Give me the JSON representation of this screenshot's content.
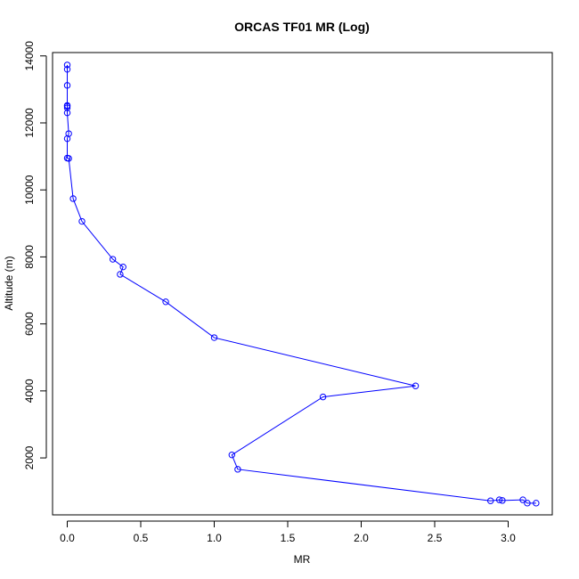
{
  "chart_data": {
    "type": "line",
    "title": "ORCAS TF01 MR (Log)",
    "xlabel": "MR",
    "ylabel": "Altitude (m)",
    "xlim": [
      -0.1,
      3.3
    ],
    "ylim": [
      300,
      14100
    ],
    "xticks": [
      0.0,
      0.5,
      1.0,
      1.5,
      2.0,
      2.5,
      3.0
    ],
    "xtick_labels": [
      "0.0",
      "0.5",
      "1.0",
      "1.5",
      "2.0",
      "2.5",
      "3.0"
    ],
    "yticks": [
      2000,
      4000,
      6000,
      8000,
      10000,
      12000,
      14000
    ],
    "ytick_labels": [
      "2000",
      "4000",
      "6000",
      "8000",
      "10000",
      "12000",
      "14000"
    ],
    "grid": false,
    "line_color": "#0000ff",
    "marker": "open-circle",
    "series": [
      {
        "x": [
          3.19,
          3.13,
          3.1,
          2.96,
          2.94,
          2.88,
          1.16,
          1.12,
          1.74,
          2.37,
          1.0,
          0.67,
          0.36,
          0.38,
          0.31,
          0.1,
          0.04,
          0.01,
          0.0,
          0.0,
          0.01,
          0.0,
          0.0,
          0.0,
          0.0,
          0.0,
          0.0,
          0.0
        ],
        "y": [
          650,
          650,
          750,
          730,
          750,
          720,
          1660,
          2090,
          3820,
          4150,
          5590,
          6660,
          7480,
          7700,
          7930,
          9060,
          9740,
          10940,
          10950,
          11530,
          11680,
          12300,
          12450,
          12500,
          12520,
          13120,
          13600,
          13730
        ]
      }
    ]
  }
}
